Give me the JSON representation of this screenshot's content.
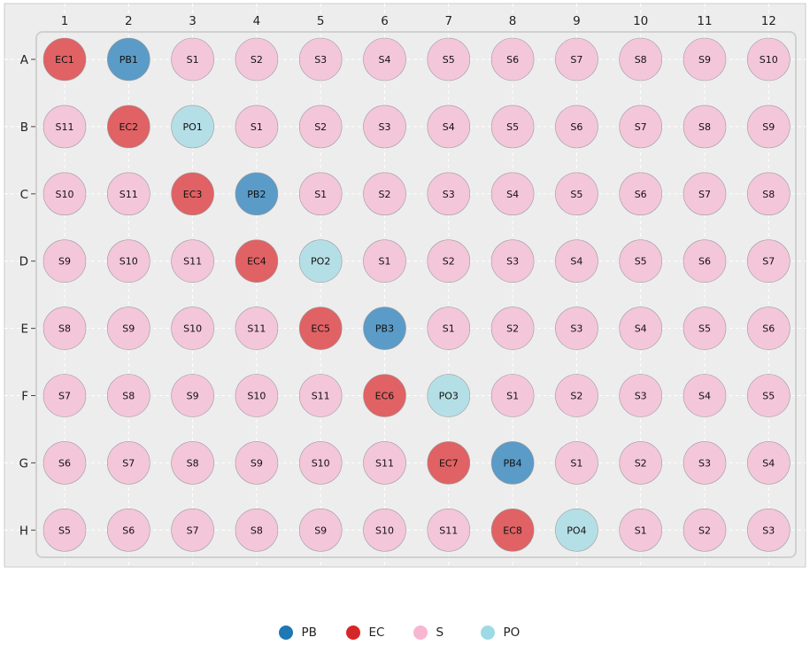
{
  "chart_data": {
    "type": "scatter",
    "columns": [
      "1",
      "2",
      "3",
      "4",
      "5",
      "6",
      "7",
      "8",
      "9",
      "10",
      "11",
      "12"
    ],
    "rows": [
      "A",
      "B",
      "C",
      "D",
      "E",
      "F",
      "G",
      "H"
    ],
    "wells": [
      [
        "EC1",
        "PB1",
        "S1",
        "S2",
        "S3",
        "S4",
        "S5",
        "S6",
        "S7",
        "S8",
        "S9",
        "S10"
      ],
      [
        "S11",
        "EC2",
        "PO1",
        "S1",
        "S2",
        "S3",
        "S4",
        "S5",
        "S6",
        "S7",
        "S8",
        "S9"
      ],
      [
        "S10",
        "S11",
        "EC3",
        "PB2",
        "S1",
        "S2",
        "S3",
        "S4",
        "S5",
        "S6",
        "S7",
        "S8"
      ],
      [
        "S9",
        "S10",
        "S11",
        "EC4",
        "PO2",
        "S1",
        "S2",
        "S3",
        "S4",
        "S5",
        "S6",
        "S7"
      ],
      [
        "S8",
        "S9",
        "S10",
        "S11",
        "EC5",
        "PB3",
        "S1",
        "S2",
        "S3",
        "S4",
        "S5",
        "S6"
      ],
      [
        "S7",
        "S8",
        "S9",
        "S10",
        "S11",
        "EC6",
        "PO3",
        "S1",
        "S2",
        "S3",
        "S4",
        "S5"
      ],
      [
        "S6",
        "S7",
        "S8",
        "S9",
        "S10",
        "S11",
        "EC7",
        "PB4",
        "S1",
        "S2",
        "S3",
        "S4"
      ],
      [
        "S5",
        "S6",
        "S7",
        "S8",
        "S9",
        "S10",
        "S11",
        "EC8",
        "PO4",
        "S1",
        "S2",
        "S3"
      ]
    ],
    "legend": [
      {
        "key": "PB",
        "label": "PB"
      },
      {
        "key": "EC",
        "label": "EC"
      },
      {
        "key": "S",
        "label": "S"
      },
      {
        "key": "PO",
        "label": "PO"
      }
    ],
    "legend_position": "bottom-center",
    "grid": true
  },
  "colors": {
    "PB": "#5b9bc8",
    "EC": "#e06264",
    "S": "#f4c6da",
    "PO": "#b5dfe6",
    "PB_legend": "#1f77b4",
    "EC_legend": "#d62728",
    "S_legend": "#f7b6d2",
    "PO_legend": "#9edae5",
    "plot_background": "#ededed",
    "grid": "#ffffff",
    "plate_border": "#d0d0d0"
  }
}
